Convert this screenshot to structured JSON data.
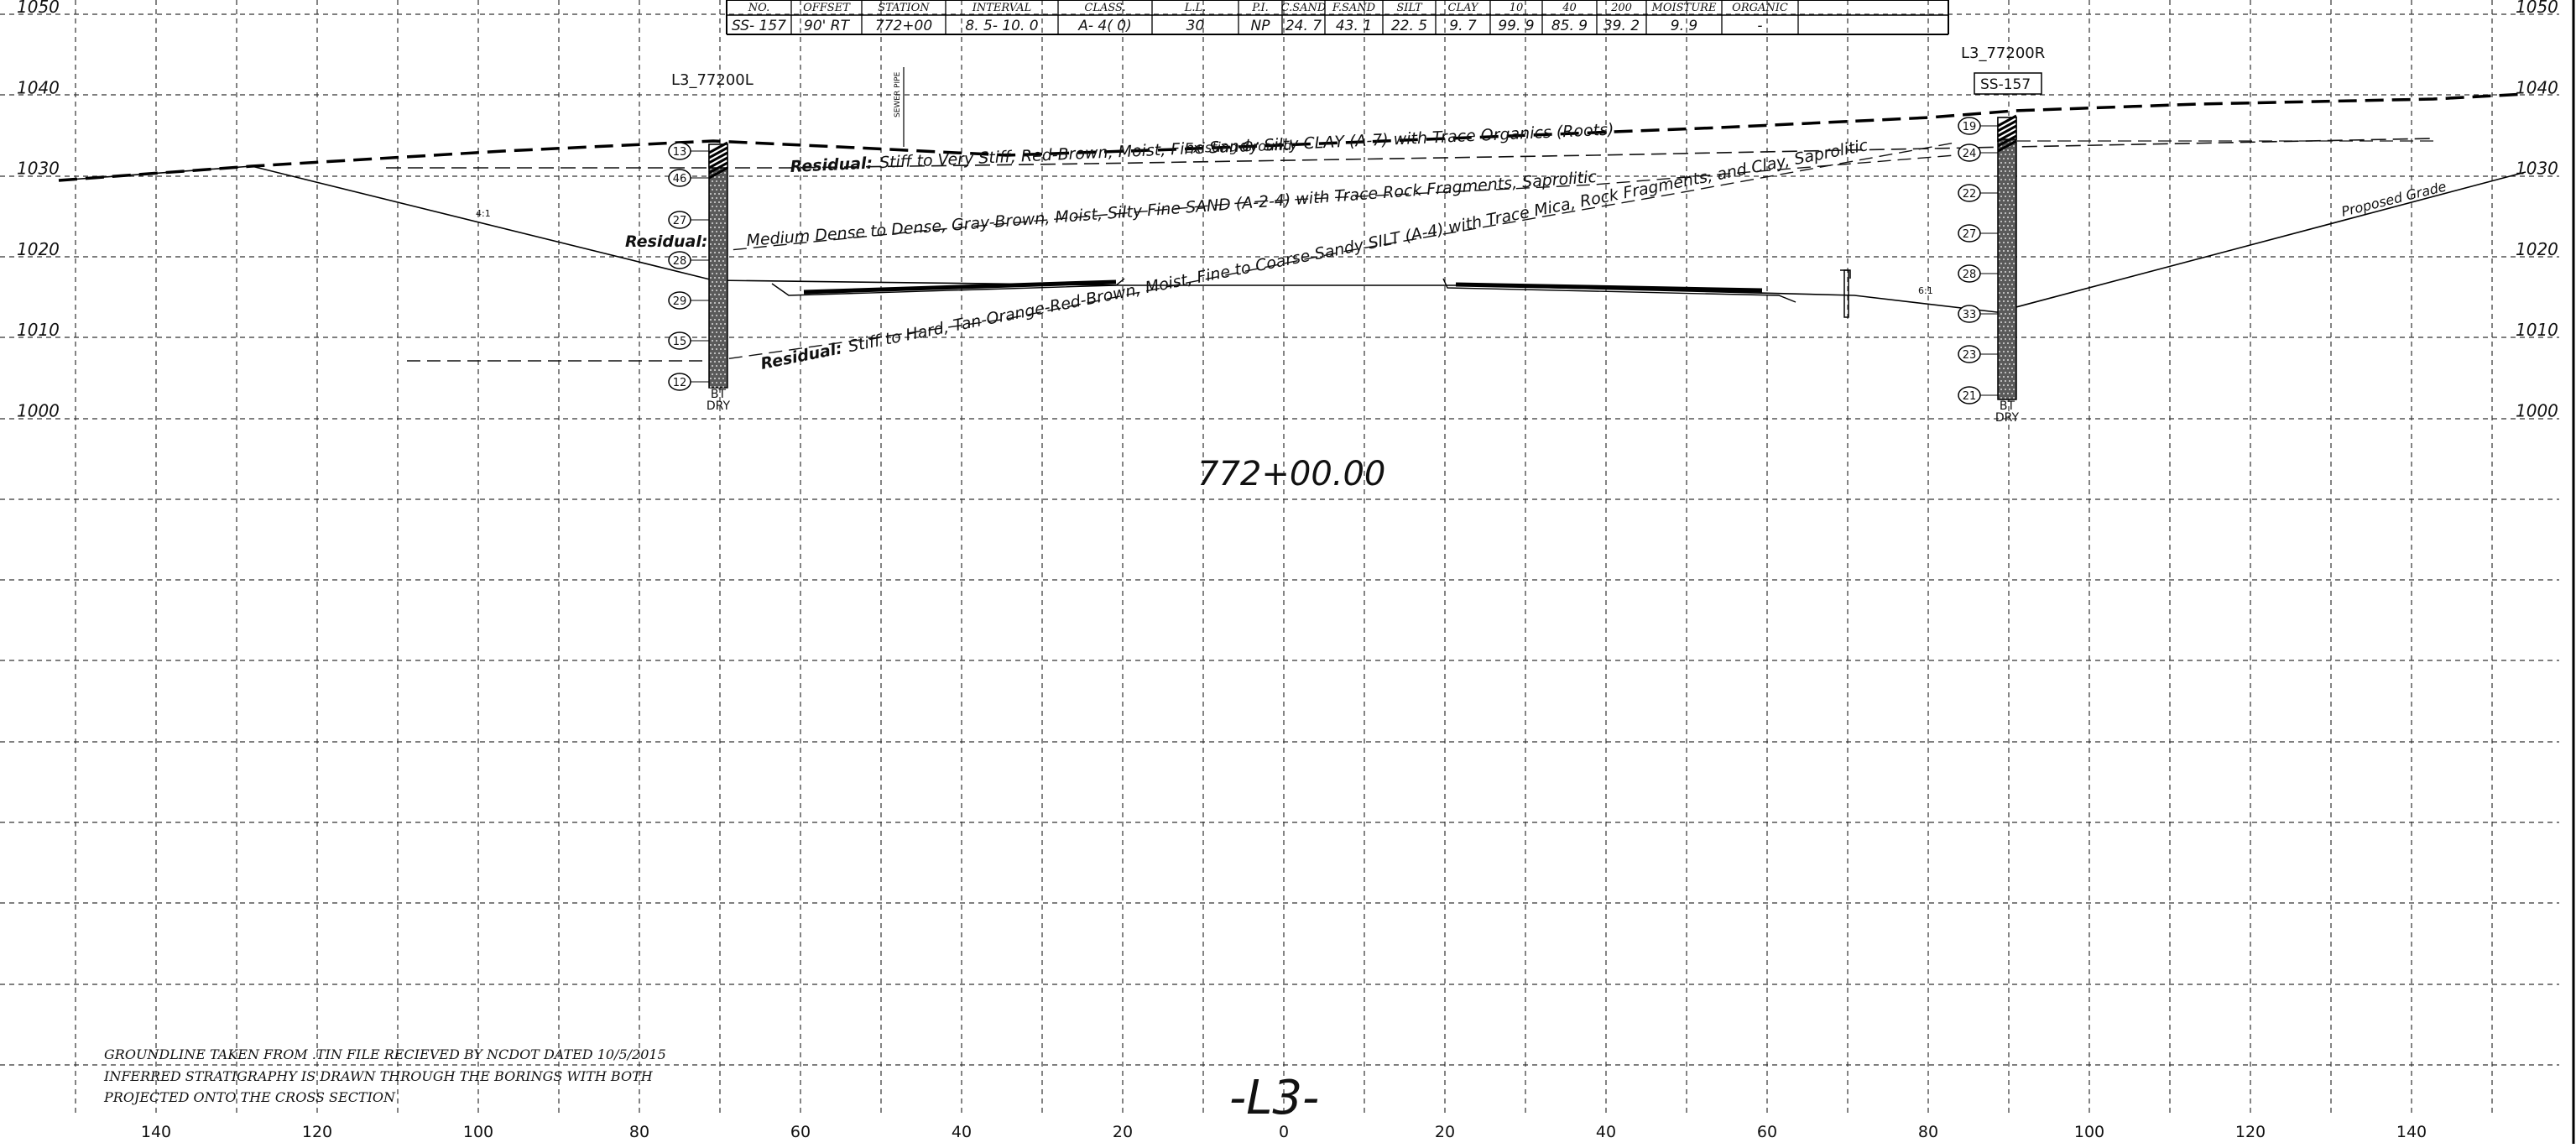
{
  "table": {
    "headers": [
      "NO.",
      "OFFSET",
      "STATION",
      "INTERVAL",
      "CLASS.",
      "L.L.",
      "P.I.",
      "C.SAND",
      "F.SAND",
      "SILT",
      "CLAY",
      "10",
      "40",
      "200",
      "MOISTURE",
      "ORGANIC"
    ],
    "row": [
      "SS- 157",
      "90' RT",
      "772+00",
      "8. 5- 10. 0",
      "A- 4( 0)",
      "30",
      "NP",
      "24. 7",
      "43. 1",
      "22. 5",
      "9. 7",
      "99. 9",
      "85. 9",
      "39. 2",
      "9. 9",
      "-"
    ]
  },
  "elevation_labels": [
    "1050",
    "1040",
    "1030",
    "1020",
    "1010",
    "1000"
  ],
  "offset_labels": [
    "140",
    "120",
    "100",
    "80",
    "60",
    "40",
    "20",
    "0",
    "20",
    "40",
    "60",
    "80",
    "100",
    "120",
    "140"
  ],
  "station_label": "772+00.00",
  "alignment_label": "-L3-",
  "borings": {
    "left": {
      "label": "L3_77200L",
      "blow_counts": [
        "13",
        "46",
        "27",
        "28",
        "29",
        "15",
        "12"
      ],
      "bottom_label": "BT",
      "water_label": "DRY"
    },
    "right": {
      "label": "L3_77200R",
      "sample_tag": "SS-157",
      "blow_counts": [
        "19",
        "24",
        "22",
        "27",
        "28",
        "33",
        "23",
        "21"
      ],
      "bottom_label": "BT",
      "water_label": "DRY"
    }
  },
  "strata": {
    "residual_1_prefix": "Residual:",
    "residual_1_text": "Stiff to Very Stiff, Red-Brown, Moist, Fine Sandy Silty CLAY (A-7) with Trace Organics (Roots)",
    "residual_2_prefix": "Residual:",
    "residual_2_text": "Medium Dense to Dense, Gray-Brown, Moist, Silty Fine SAND (A-2-4) with Trace Rock Fragments, Saprolitic",
    "residual_3_prefix": "Residual:",
    "residual_3_text": "Stiff to Hard, Tan-Orange-Red-Brown, Moist, Fine to Coarse Sandy SILT (A-4) with Trace Mica, Rock Fragments, and Clay, Saprolitic"
  },
  "annotations": {
    "existing_ground": "Existing Ground",
    "proposed_grade": "Proposed Grade",
    "slope_left": "4:1",
    "slope_right": "6:1",
    "utility_label": "SEWER PIPE"
  },
  "notes": [
    "GROUNDLINE TAKEN FROM .TIN FILE RECIEVED BY NCDOT DATED 10/5/2015",
    "INFERRED STRATIGRAPHY IS DRAWN THROUGH THE BORINGS WITH BOTH",
    "PROJECTED ONTO THE CROSS SECTION"
  ]
}
